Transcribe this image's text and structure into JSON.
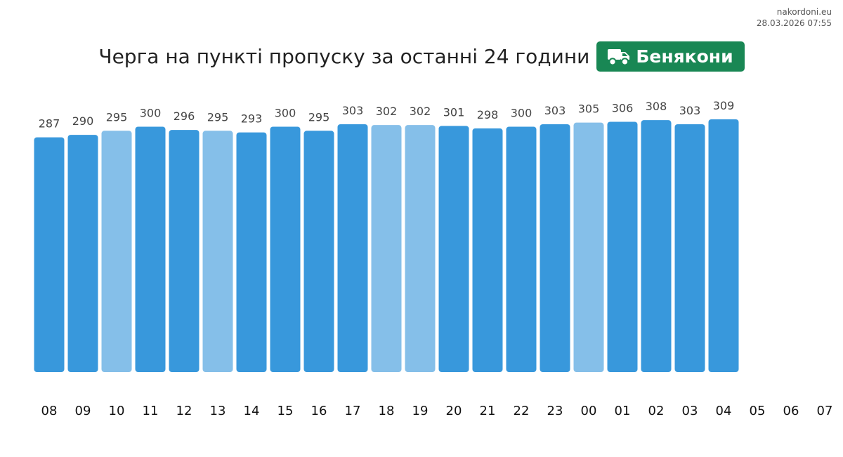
{
  "site": {
    "name": "nakordoni.eu",
    "timestamp": "28.03.2026 07:55"
  },
  "header": {
    "title": "Черга на пункті пропуску за останні 24 години",
    "checkpoint": "Бенякони",
    "icon": "truck-icon"
  },
  "colors": {
    "bar_primary": "#3898DC",
    "bar_light": "#85BFE9",
    "badge": "#198754"
  },
  "chart_data": {
    "type": "bar",
    "title": "Черга на пункті пропуску за останні 24 години",
    "xlabel": "",
    "ylabel": "",
    "categories": [
      "08",
      "09",
      "10",
      "11",
      "12",
      "13",
      "14",
      "15",
      "16",
      "17",
      "18",
      "19",
      "20",
      "21",
      "22",
      "23",
      "00",
      "01",
      "02",
      "03",
      "04",
      "05",
      "06",
      "07"
    ],
    "values": [
      287,
      290,
      295,
      300,
      296,
      295,
      293,
      300,
      295,
      303,
      302,
      302,
      301,
      298,
      300,
      303,
      305,
      306,
      308,
      303,
      309,
      null,
      null,
      null
    ],
    "light_bars": [
      false,
      false,
      true,
      false,
      false,
      true,
      false,
      false,
      false,
      false,
      true,
      true,
      false,
      false,
      false,
      false,
      true,
      false,
      false,
      false,
      false,
      false,
      false,
      false
    ],
    "ylim": [
      0,
      309
    ],
    "grid": false,
    "legend": "none"
  }
}
